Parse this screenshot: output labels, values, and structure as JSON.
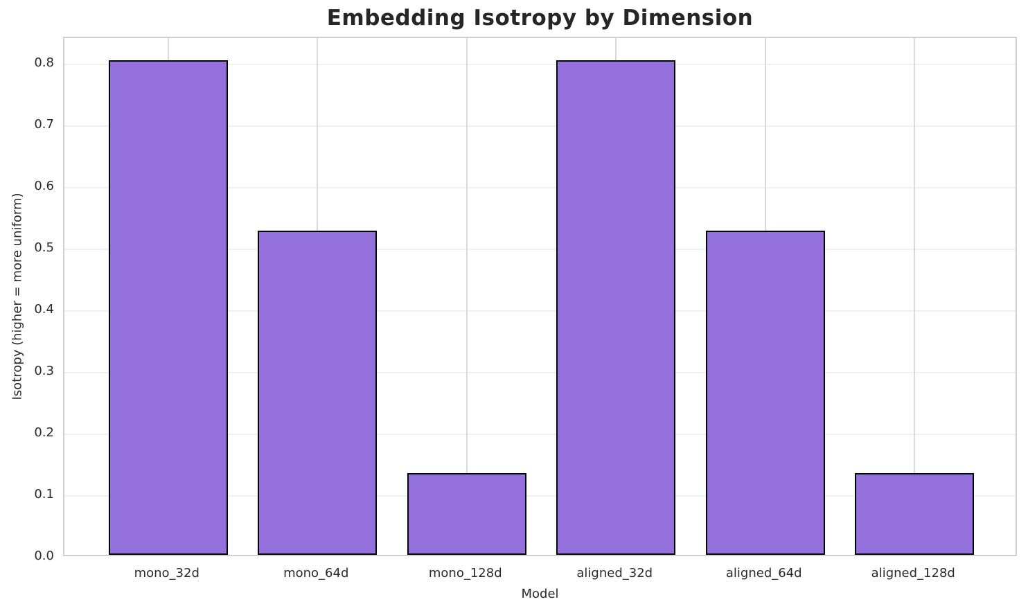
{
  "chart_data": {
    "type": "bar",
    "title": "Embedding Isotropy by Dimension",
    "xlabel": "Model",
    "ylabel": "Isotropy (higher = more uniform)",
    "categories": [
      "mono_32d",
      "mono_64d",
      "mono_128d",
      "aligned_32d",
      "aligned_64d",
      "aligned_128d"
    ],
    "values": [
      0.803,
      0.526,
      0.133,
      0.803,
      0.526,
      0.133
    ],
    "yticks": [
      0.0,
      0.1,
      0.2,
      0.3,
      0.4,
      0.5,
      0.6,
      0.7,
      0.8
    ],
    "ylim": [
      0.0,
      0.843
    ],
    "grid": true,
    "legend": "none",
    "colors": {
      "bar_fill": "#9370DB",
      "bar_edge": "#000000",
      "grid_horizontal": "#f0f0f0",
      "grid_vertical": "#dadada",
      "spine": "#d0d0d0",
      "text": "#2b2b2b",
      "title_text": "#262626",
      "background": "#ffffff"
    }
  }
}
